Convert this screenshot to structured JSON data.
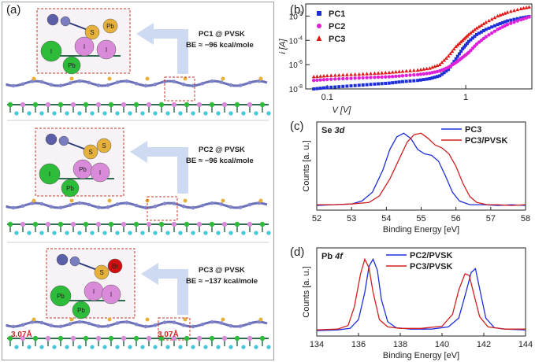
{
  "panel_labels": {
    "a": "(a)",
    "b": "(b)",
    "c": "(c)",
    "d": "(d)"
  },
  "structures": [
    {
      "title": "PC1 @ PVSK",
      "be": "BE ≈ −96 kcal/mole",
      "inset_labels": [
        "S",
        "Pb",
        "I",
        "I",
        "I",
        "Pb"
      ]
    },
    {
      "title": "PC2 @ PVSK",
      "be": "BE ≈ −96 kcal/mole",
      "inset_labels": [
        "S",
        "S",
        "I",
        "Pb",
        "I",
        "Pb"
      ]
    },
    {
      "title": "PC3 @ PVSK",
      "be": "BE ≈ −137 kcal/mole",
      "inset_labels": [
        "S",
        "Br",
        "Pb",
        "I",
        "I",
        "Pb"
      ],
      "distance_labels": [
        "3.07Å",
        "3.07Å"
      ]
    }
  ],
  "chart_data": [
    {
      "id": "b",
      "type": "scatter",
      "xlabel": "V [V]",
      "ylabel": "i [A]",
      "x_scale": "log",
      "y_scale": "log",
      "xlim": [
        0.07,
        3
      ],
      "ylim": [
        1e-08,
        0.1
      ],
      "x_ticks": [
        "0.1",
        "1"
      ],
      "y_ticks": [
        "10^-8",
        "10^-6",
        "10^-4",
        "10^-2"
      ],
      "legend_position": "top-left",
      "series": [
        {
          "name": "PC1",
          "color": "#1f2fd8",
          "marker": "square",
          "x": [
            0.08,
            0.1,
            0.13,
            0.17,
            0.22,
            0.28,
            0.35,
            0.45,
            0.55,
            0.65,
            0.75,
            0.85,
            0.95,
            1.05,
            1.2,
            1.4,
            1.7,
            2.0,
            2.5,
            3.0
          ],
          "y": [
            1e-08,
            1.3e-08,
            1.6e-08,
            2e-08,
            2.5e-08,
            3e-08,
            4e-08,
            5e-08,
            7e-08,
            1.2e-07,
            4e-07,
            3e-06,
            2e-05,
            8e-05,
            0.0003,
            0.0008,
            0.002,
            0.004,
            0.007,
            0.01
          ]
        },
        {
          "name": "PC2",
          "color": "#e020d8",
          "marker": "circle",
          "x": [
            0.08,
            0.1,
            0.13,
            0.17,
            0.22,
            0.28,
            0.35,
            0.45,
            0.55,
            0.65,
            0.75,
            0.85,
            0.95,
            1.05,
            1.2,
            1.4,
            1.7,
            2.0,
            2.5,
            3.0
          ],
          "y": [
            5e-08,
            6e-08,
            7e-08,
            8e-08,
            9e-08,
            1e-07,
            1.2e-07,
            1.5e-07,
            2e-07,
            3e-07,
            6e-07,
            1.5e-06,
            4e-06,
            1e-05,
            5e-05,
            0.0002,
            0.0008,
            0.002,
            0.005,
            0.01
          ]
        },
        {
          "name": "PC3",
          "color": "#e01818",
          "marker": "triangle",
          "x": [
            0.08,
            0.1,
            0.13,
            0.17,
            0.22,
            0.28,
            0.35,
            0.45,
            0.55,
            0.65,
            0.75,
            0.85,
            0.95,
            1.05,
            1.2,
            1.4,
            1.7,
            2.0,
            2.5,
            3.0
          ],
          "y": [
            1e-07,
            1.2e-07,
            1.4e-07,
            1.6e-07,
            1.9e-07,
            2.2e-07,
            2.8e-07,
            3.5e-07,
            5e-07,
            1e-06,
            5e-06,
            3e-05,
            0.0001,
            0.0003,
            0.001,
            0.003,
            0.01,
            0.02,
            0.04,
            0.06
          ]
        }
      ]
    },
    {
      "id": "c",
      "type": "line",
      "title": "Se 3d",
      "xlabel": "Binding Energy [eV]",
      "ylabel": "Counts [a. u.]",
      "xlim": [
        52,
        58
      ],
      "ylim": [
        0,
        1.1
      ],
      "x_ticks": [
        "52",
        "53",
        "54",
        "55",
        "56",
        "57",
        "58"
      ],
      "legend_position": "top-right",
      "series": [
        {
          "name": "PC3",
          "color": "#1f2fd8",
          "x": [
            52,
            52.5,
            53,
            53.3,
            53.6,
            53.9,
            54.1,
            54.3,
            54.5,
            54.7,
            54.9,
            55.1,
            55.3,
            55.5,
            55.7,
            55.9,
            56.1,
            56.4,
            56.8,
            57.2,
            57.6,
            58
          ],
          "y": [
            0.02,
            0.03,
            0.04,
            0.08,
            0.2,
            0.5,
            0.78,
            0.95,
            1.0,
            0.93,
            0.78,
            0.72,
            0.7,
            0.62,
            0.42,
            0.2,
            0.08,
            0.03,
            0.03,
            0.02,
            0.03,
            0.02
          ]
        },
        {
          "name": "PC3/PVSK",
          "color": "#d02020",
          "x": [
            52,
            52.5,
            53,
            53.5,
            53.8,
            54.1,
            54.4,
            54.6,
            54.8,
            55.0,
            55.2,
            55.4,
            55.6,
            55.8,
            56.0,
            56.2,
            56.4,
            56.6,
            56.9,
            57.2,
            57.6,
            58
          ],
          "y": [
            0.03,
            0.03,
            0.04,
            0.06,
            0.15,
            0.38,
            0.68,
            0.88,
            0.98,
            1.0,
            0.93,
            0.84,
            0.8,
            0.72,
            0.55,
            0.32,
            0.14,
            0.06,
            0.03,
            0.03,
            0.02,
            0.03
          ]
        }
      ]
    },
    {
      "id": "d",
      "type": "line",
      "title": "Pb 4f",
      "xlabel": "Binding Energy [eV]",
      "ylabel": "Counts [a. u.]",
      "xlim": [
        134,
        144
      ],
      "ylim": [
        0,
        1.1
      ],
      "x_ticks": [
        "134",
        "136",
        "138",
        "140",
        "142",
        "144"
      ],
      "legend_position": "top-center",
      "series": [
        {
          "name": "PC2/PVSK",
          "color": "#1f2fd8",
          "x": [
            134,
            135,
            135.6,
            136,
            136.3,
            136.5,
            136.7,
            136.9,
            137.1,
            137.4,
            137.8,
            138.5,
            139.5,
            140.3,
            140.8,
            141.1,
            141.4,
            141.6,
            141.8,
            142.1,
            142.5,
            143,
            144
          ],
          "y": [
            0.03,
            0.04,
            0.06,
            0.18,
            0.55,
            0.9,
            1.0,
            0.85,
            0.45,
            0.15,
            0.07,
            0.05,
            0.05,
            0.08,
            0.2,
            0.5,
            0.82,
            0.87,
            0.6,
            0.2,
            0.07,
            0.05,
            0.04
          ]
        },
        {
          "name": "PC3/PVSK",
          "color": "#d02020",
          "x": [
            134,
            135,
            135.5,
            135.8,
            136.1,
            136.3,
            136.5,
            136.7,
            137.0,
            137.4,
            138,
            139,
            140,
            140.5,
            140.8,
            141.1,
            141.3,
            141.5,
            141.8,
            142.2,
            143,
            144
          ],
          "y": [
            0.04,
            0.05,
            0.1,
            0.35,
            0.8,
            1.0,
            0.88,
            0.55,
            0.18,
            0.08,
            0.06,
            0.06,
            0.09,
            0.25,
            0.58,
            0.8,
            0.78,
            0.55,
            0.22,
            0.08,
            0.05,
            0.05
          ]
        }
      ]
    }
  ]
}
